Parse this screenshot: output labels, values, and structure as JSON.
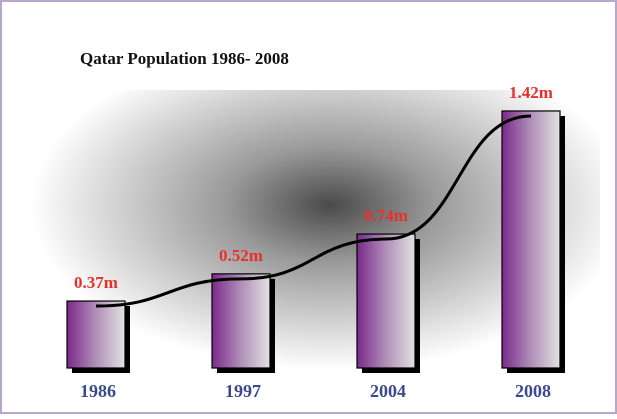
{
  "chart_data": {
    "type": "bar",
    "title": "Qatar Population 1986- 2008",
    "categories": [
      "1986",
      "1997",
      "2004",
      "2008"
    ],
    "values": [
      0.37,
      0.52,
      0.74,
      1.42
    ],
    "value_labels": [
      "0.37m",
      "0.52m",
      "0.74m",
      "1.42m"
    ],
    "color": "#7a2a8a"
  }
}
